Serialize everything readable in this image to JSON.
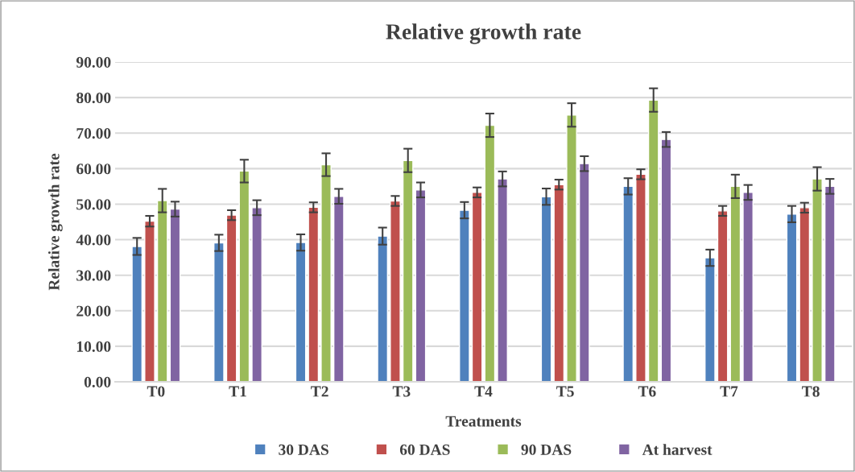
{
  "chart_data": {
    "type": "bar",
    "title": "Relative growth rate",
    "xlabel": "Treatments",
    "ylabel": "Relative growth rate",
    "categories": [
      "T0",
      "T1",
      "T2",
      "T3",
      "T4",
      "T5",
      "T6",
      "T7",
      "T8"
    ],
    "series": [
      {
        "name": "30 DAS",
        "color": "#4f81bd",
        "values": [
          38.1,
          39.1,
          39.2,
          41.0,
          48.3,
          52.1,
          55.0,
          34.9,
          47.2
        ],
        "errors": [
          2.4,
          2.3,
          2.3,
          2.4,
          2.3,
          2.3,
          2.3,
          2.3,
          2.3
        ]
      },
      {
        "name": "60 DAS",
        "color": "#c0504d",
        "values": [
          45.2,
          46.9,
          49.1,
          50.9,
          53.3,
          55.5,
          58.4,
          48.1,
          49.0
        ],
        "errors": [
          1.5,
          1.4,
          1.4,
          1.4,
          1.4,
          1.4,
          1.4,
          1.4,
          1.4
        ]
      },
      {
        "name": "90 DAS",
        "color": "#9bbb59",
        "values": [
          51.0,
          59.3,
          61.1,
          62.3,
          72.2,
          75.1,
          79.3,
          55.0,
          57.1
        ],
        "errors": [
          3.3,
          3.2,
          3.2,
          3.3,
          3.3,
          3.3,
          3.3,
          3.3,
          3.3
        ]
      },
      {
        "name": "At harvest",
        "color": "#8064a2",
        "values": [
          48.6,
          49.0,
          52.2,
          54.0,
          57.1,
          61.4,
          68.2,
          53.3,
          55.0
        ],
        "errors": [
          2.1,
          2.1,
          2.1,
          2.1,
          2.1,
          2.1,
          2.1,
          2.1,
          2.1
        ]
      }
    ],
    "ylim": [
      0,
      90
    ],
    "yticks": [
      {
        "value": 0,
        "label": "0.00"
      },
      {
        "value": 10,
        "label": "10.00"
      },
      {
        "value": 20,
        "label": "20.00"
      },
      {
        "value": 30,
        "label": "30.00"
      },
      {
        "value": 40,
        "label": "40.00"
      },
      {
        "value": 50,
        "label": "50.00"
      },
      {
        "value": 60,
        "label": "60.00"
      },
      {
        "value": 70,
        "label": "70.00"
      },
      {
        "value": 80,
        "label": "80.00"
      },
      {
        "value": 90,
        "label": "90.00"
      }
    ],
    "grid": "y",
    "legend": "bottom"
  }
}
